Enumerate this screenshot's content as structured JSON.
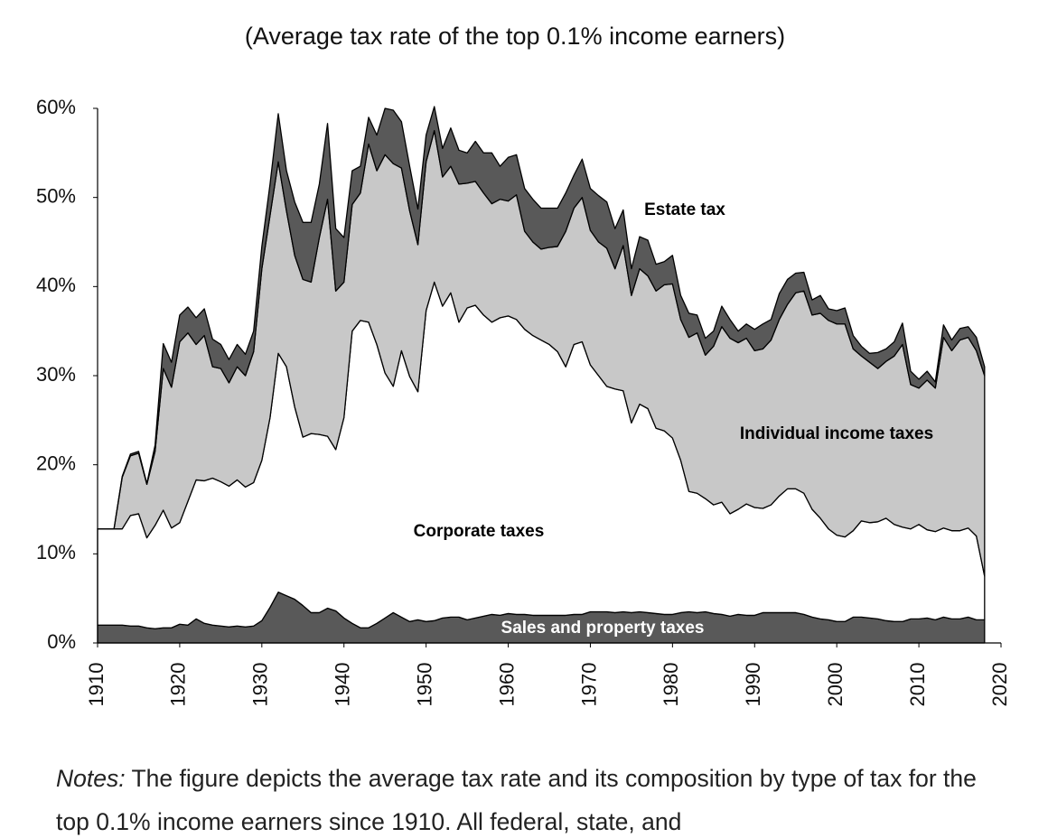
{
  "chart_data": {
    "type": "stacked_area",
    "title": "(Average tax rate of the top 0.1% income earners)",
    "x": [
      1910,
      1911,
      1912,
      1913,
      1914,
      1915,
      1916,
      1917,
      1918,
      1919,
      1920,
      1921,
      1922,
      1923,
      1924,
      1925,
      1926,
      1927,
      1928,
      1929,
      1930,
      1931,
      1932,
      1933,
      1934,
      1935,
      1936,
      1937,
      1938,
      1939,
      1940,
      1941,
      1942,
      1943,
      1944,
      1945,
      1946,
      1947,
      1948,
      1949,
      1950,
      1951,
      1952,
      1953,
      1954,
      1955,
      1956,
      1957,
      1958,
      1959,
      1960,
      1961,
      1962,
      1963,
      1964,
      1965,
      1966,
      1967,
      1968,
      1969,
      1970,
      1971,
      1972,
      1973,
      1974,
      1975,
      1976,
      1977,
      1978,
      1979,
      1980,
      1981,
      1982,
      1983,
      1984,
      1985,
      1986,
      1987,
      1988,
      1989,
      1990,
      1991,
      1992,
      1993,
      1994,
      1995,
      1996,
      1997,
      1998,
      1999,
      2000,
      2001,
      2002,
      2003,
      2004,
      2005,
      2006,
      2007,
      2008,
      2009,
      2010,
      2011,
      2012,
      2013,
      2014,
      2015,
      2016,
      2017,
      2018
    ],
    "series": [
      {
        "name": "Sales and property taxes",
        "color": "#595959",
        "label_color": "#ffffff",
        "values": [
          2.0,
          2.0,
          2.0,
          2.0,
          1.9,
          1.9,
          1.7,
          1.6,
          1.7,
          1.7,
          2.1,
          2.0,
          2.7,
          2.2,
          2.0,
          1.9,
          1.8,
          1.9,
          1.8,
          1.9,
          2.5,
          4.0,
          5.7,
          5.3,
          4.9,
          4.2,
          3.4,
          3.4,
          3.9,
          3.6,
          2.8,
          2.2,
          1.7,
          1.7,
          2.2,
          2.8,
          3.4,
          2.9,
          2.4,
          2.6,
          2.4,
          2.5,
          2.8,
          2.9,
          2.9,
          2.6,
          2.8,
          3.0,
          3.2,
          3.1,
          3.3,
          3.2,
          3.2,
          3.1,
          3.1,
          3.1,
          3.1,
          3.1,
          3.2,
          3.2,
          3.5,
          3.5,
          3.5,
          3.4,
          3.5,
          3.4,
          3.5,
          3.4,
          3.3,
          3.2,
          3.2,
          3.4,
          3.5,
          3.4,
          3.5,
          3.3,
          3.2,
          3.0,
          3.2,
          3.1,
          3.1,
          3.4,
          3.4,
          3.4,
          3.4,
          3.4,
          3.2,
          2.9,
          2.7,
          2.6,
          2.4,
          2.4,
          2.9,
          2.9,
          2.8,
          2.7,
          2.5,
          2.4,
          2.4,
          2.7,
          2.7,
          2.8,
          2.6,
          2.9,
          2.7,
          2.7,
          2.9,
          2.6,
          2.6
        ]
      },
      {
        "name": "Corporate taxes",
        "color": "#ffffff",
        "label_color": "#000000",
        "values": [
          10.8,
          10.8,
          10.8,
          10.8,
          12.4,
          12.6,
          10.1,
          11.6,
          13.2,
          11.2,
          11.4,
          13.9,
          15.6,
          16.0,
          16.5,
          16.2,
          15.8,
          16.4,
          15.7,
          16.1,
          18.0,
          21.3,
          26.8,
          25.7,
          21.6,
          18.9,
          20.1,
          20.0,
          19.3,
          18.1,
          22.5,
          32.8,
          34.5,
          34.3,
          31.3,
          27.5,
          25.4,
          29.9,
          27.5,
          25.6,
          34.9,
          38.0,
          35.0,
          36.4,
          33.1,
          35.0,
          35.1,
          33.8,
          32.8,
          33.4,
          33.4,
          33.1,
          32.0,
          31.4,
          30.9,
          30.4,
          29.6,
          27.9,
          30.3,
          30.6,
          27.7,
          26.5,
          25.3,
          25.1,
          24.8,
          21.3,
          23.3,
          22.9,
          20.8,
          20.6,
          19.8,
          17.1,
          13.5,
          13.4,
          12.7,
          12.2,
          12.6,
          11.5,
          11.8,
          12.5,
          12.1,
          11.7,
          12.1,
          13.1,
          13.9,
          13.9,
          13.6,
          12.1,
          11.3,
          10.2,
          9.7,
          9.5,
          9.7,
          10.8,
          10.7,
          10.9,
          11.5,
          10.9,
          10.6,
          10.1,
          10.6,
          9.9,
          9.9,
          10.0,
          9.9,
          9.9,
          10.0,
          9.4,
          4.9
        ]
      },
      {
        "name": "Individual income taxes",
        "color": "#c8c8c8",
        "label_color": "#000000",
        "values": [
          0,
          0,
          0,
          5.8,
          6.7,
          6.8,
          6.0,
          8.3,
          15.9,
          15.8,
          20.3,
          18.9,
          15.2,
          16.3,
          12.5,
          12.7,
          11.6,
          12.7,
          12.5,
          14.7,
          21.5,
          22.7,
          21.5,
          17.5,
          17.0,
          17.7,
          17.0,
          22.1,
          26.6,
          17.8,
          15.2,
          14.2,
          14.3,
          20.0,
          19.5,
          24.5,
          25.0,
          20.5,
          18.6,
          16.5,
          16.7,
          17.0,
          14.5,
          14.2,
          15.5,
          14.0,
          13.9,
          13.7,
          13.3,
          13.3,
          12.9,
          14.0,
          11.0,
          10.5,
          10.2,
          10.9,
          11.8,
          15.2,
          15.3,
          16.2,
          15.1,
          15.0,
          15.5,
          13.5,
          16.3,
          14.3,
          15.2,
          14.9,
          15.4,
          16.4,
          17.3,
          15.8,
          17.3,
          18.0,
          16.1,
          17.8,
          19.7,
          19.7,
          18.7,
          18.6,
          17.6,
          17.9,
          18.5,
          19.8,
          20.7,
          22.0,
          22.7,
          21.8,
          23.0,
          23.4,
          23.7,
          23.9,
          20.4,
          18.5,
          18.0,
          17.2,
          17.6,
          18.9,
          20.5,
          16.2,
          15.3,
          16.8,
          16.1,
          21.4,
          20.2,
          21.4,
          21.4,
          20.8,
          22.5
        ]
      },
      {
        "name": "Estate tax",
        "color": "#595959",
        "label_color": "#000000",
        "values": [
          0,
          0,
          0,
          0.1,
          0.2,
          0.2,
          0.1,
          0.7,
          2.8,
          2.8,
          3.0,
          2.9,
          3.0,
          3.0,
          3.1,
          2.7,
          2.6,
          2.5,
          2.4,
          2.3,
          2.5,
          3.5,
          5.4,
          4.5,
          6.0,
          6.4,
          6.7,
          6.0,
          8.5,
          7.0,
          5.0,
          3.8,
          3.0,
          3.0,
          4.0,
          5.2,
          6.0,
          5.2,
          5.0,
          4.0,
          3.0,
          2.7,
          3.2,
          4.3,
          3.8,
          3.4,
          4.5,
          4.5,
          5.7,
          3.7,
          4.9,
          4.5,
          4.8,
          4.8,
          4.6,
          4.4,
          4.3,
          4.3,
          3.7,
          4.3,
          4.7,
          5.2,
          5.2,
          4.5,
          4.0,
          3.0,
          3.6,
          4.0,
          3.0,
          2.6,
          3.2,
          2.7,
          2.7,
          2.0,
          1.9,
          1.7,
          2.3,
          2.1,
          1.3,
          1.6,
          2.4,
          2.8,
          2.3,
          2.9,
          2.8,
          2.2,
          2.1,
          1.7,
          2.0,
          1.3,
          1.5,
          1.8,
          1.5,
          1.1,
          1.0,
          1.8,
          1.4,
          1.6,
          2.4,
          1.5,
          1.0,
          1.0,
          0.7,
          1.4,
          1.2,
          1.3,
          1.2,
          1.5,
          1.0
        ]
      }
    ],
    "xlim": [
      1910,
      2020
    ],
    "xticks": [
      1910,
      1920,
      1930,
      1940,
      1950,
      1960,
      1970,
      1980,
      1990,
      2000,
      2010,
      2020
    ],
    "ylim": [
      0,
      60
    ],
    "yticks": [
      {
        "value": 0,
        "label": "0%"
      },
      {
        "value": 10,
        "label": "10%"
      },
      {
        "value": 20,
        "label": "20%"
      },
      {
        "value": 30,
        "label": "30%"
      },
      {
        "value": 40,
        "label": "40%"
      },
      {
        "value": 50,
        "label": "50%"
      },
      {
        "value": 60,
        "label": "60%"
      }
    ],
    "grid": false
  },
  "notes": {
    "label": "Notes:",
    "text": "The figure depicts the average tax rate and its composition by type of tax for the top 0.1% income earners since 1910. All federal, state, and"
  }
}
